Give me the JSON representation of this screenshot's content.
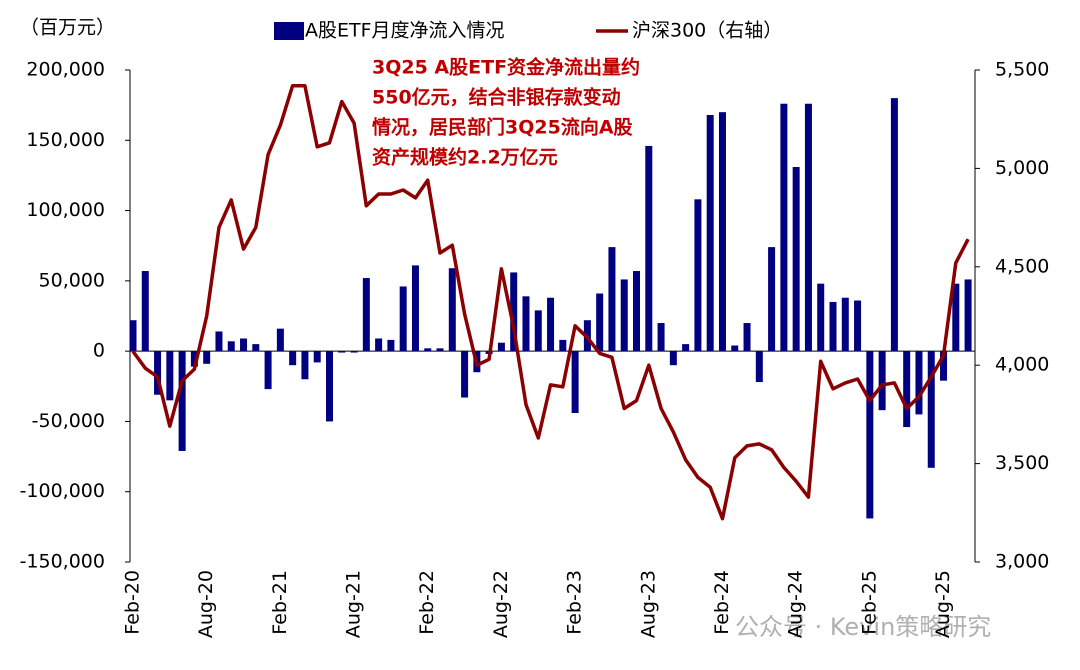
{
  "chart_data": {
    "type": "bar_line",
    "y_label": "（百万元）",
    "annotation": [
      "3Q25 A股ETF资金净流出量约",
      "550亿元，结合非银存款变动",
      "情况，居民部门3Q25流向A股",
      "资产规模约2.2万亿元"
    ],
    "watermark": "公众号 · Kevin策略研究",
    "categories": [
      "Feb-20",
      null,
      null,
      null,
      null,
      null,
      "Aug-20",
      null,
      null,
      null,
      null,
      null,
      "Feb-21",
      null,
      null,
      null,
      null,
      null,
      "Aug-21",
      null,
      null,
      null,
      null,
      null,
      "Feb-22",
      null,
      null,
      null,
      null,
      null,
      "Aug-22",
      null,
      null,
      null,
      null,
      null,
      "Feb-23",
      null,
      null,
      null,
      null,
      null,
      "Aug-23",
      null,
      null,
      null,
      null,
      null,
      "Feb-24",
      null,
      null,
      null,
      null,
      null,
      "Aug-24",
      null,
      null,
      null,
      null,
      null,
      "Feb-25",
      null,
      null,
      null,
      null,
      null,
      "Aug-25",
      null,
      null
    ],
    "series": [
      {
        "name": "A股ETF月度净流入情况",
        "color": "#000080",
        "values": [
          22000,
          57000,
          -31000,
          -35000,
          -71000,
          -11000,
          -9000,
          14000,
          7000,
          9000,
          5000,
          -27000,
          16000,
          -10000,
          -20000,
          -8000,
          -50000,
          -1000,
          -1000,
          52000,
          9000,
          8000,
          46000,
          61000,
          2000,
          2000,
          59000,
          -33000,
          -15000,
          -2000,
          6000,
          56000,
          39000,
          29000,
          38000,
          8000,
          -44000,
          22000,
          41000,
          74000,
          51000,
          57000,
          146000,
          20000,
          -10000,
          5000,
          108000,
          168000,
          170000,
          4000,
          20000,
          -22000,
          74000,
          176000,
          131000,
          176000,
          48000,
          35000,
          38000,
          36000,
          -119000,
          -42000,
          180000,
          -54000,
          -45000,
          -83000,
          -21000,
          48000,
          51000
        ]
      },
      {
        "name": "沪深300（右轴）",
        "color": "#8b0000",
        "axis": "y2",
        "values": [
          4070,
          3985,
          3940,
          3690,
          3920,
          3980,
          4250,
          4700,
          4840,
          4590,
          4700,
          5070,
          5220,
          5420,
          5420,
          5110,
          5130,
          5340,
          5230,
          4810,
          4870,
          4870,
          4890,
          4850,
          4940,
          4570,
          4610,
          4260,
          4000,
          4030,
          4490,
          4190,
          3800,
          3630,
          3900,
          3890,
          4200,
          4140,
          4060,
          4040,
          3780,
          3820,
          4000,
          3780,
          3660,
          3520,
          3430,
          3380,
          3220,
          3530,
          3590,
          3600,
          3570,
          3480,
          3410,
          3330,
          4020,
          3880,
          3910,
          3930,
          3820,
          3900,
          3910,
          3780,
          3840,
          3940,
          4050,
          4520,
          4640
        ]
      }
    ],
    "ylim": [
      -150000,
      200000
    ],
    "yticks": [
      {
        "value": -150000,
        "label": "-150,000"
      },
      {
        "value": -100000,
        "label": "-100,000"
      },
      {
        "value": -50000,
        "label": "-50,000"
      },
      0,
      {
        "value": 50000,
        "label": "50,000"
      },
      {
        "value": 100000,
        "label": "100,000"
      },
      {
        "value": 150000,
        "label": "150,000"
      },
      {
        "value": 200000,
        "label": "200,000"
      }
    ],
    "y2lim": [
      3000,
      5500
    ],
    "y2ticks": [
      {
        "value": 3000,
        "label": "3,000"
      },
      {
        "value": 3500,
        "label": "3,500"
      },
      {
        "value": 4000,
        "label": "4,000"
      },
      {
        "value": 4500,
        "label": "4,500"
      },
      {
        "value": 5000,
        "label": "5,000"
      },
      {
        "value": 5500,
        "label": "5,500"
      }
    ]
  }
}
